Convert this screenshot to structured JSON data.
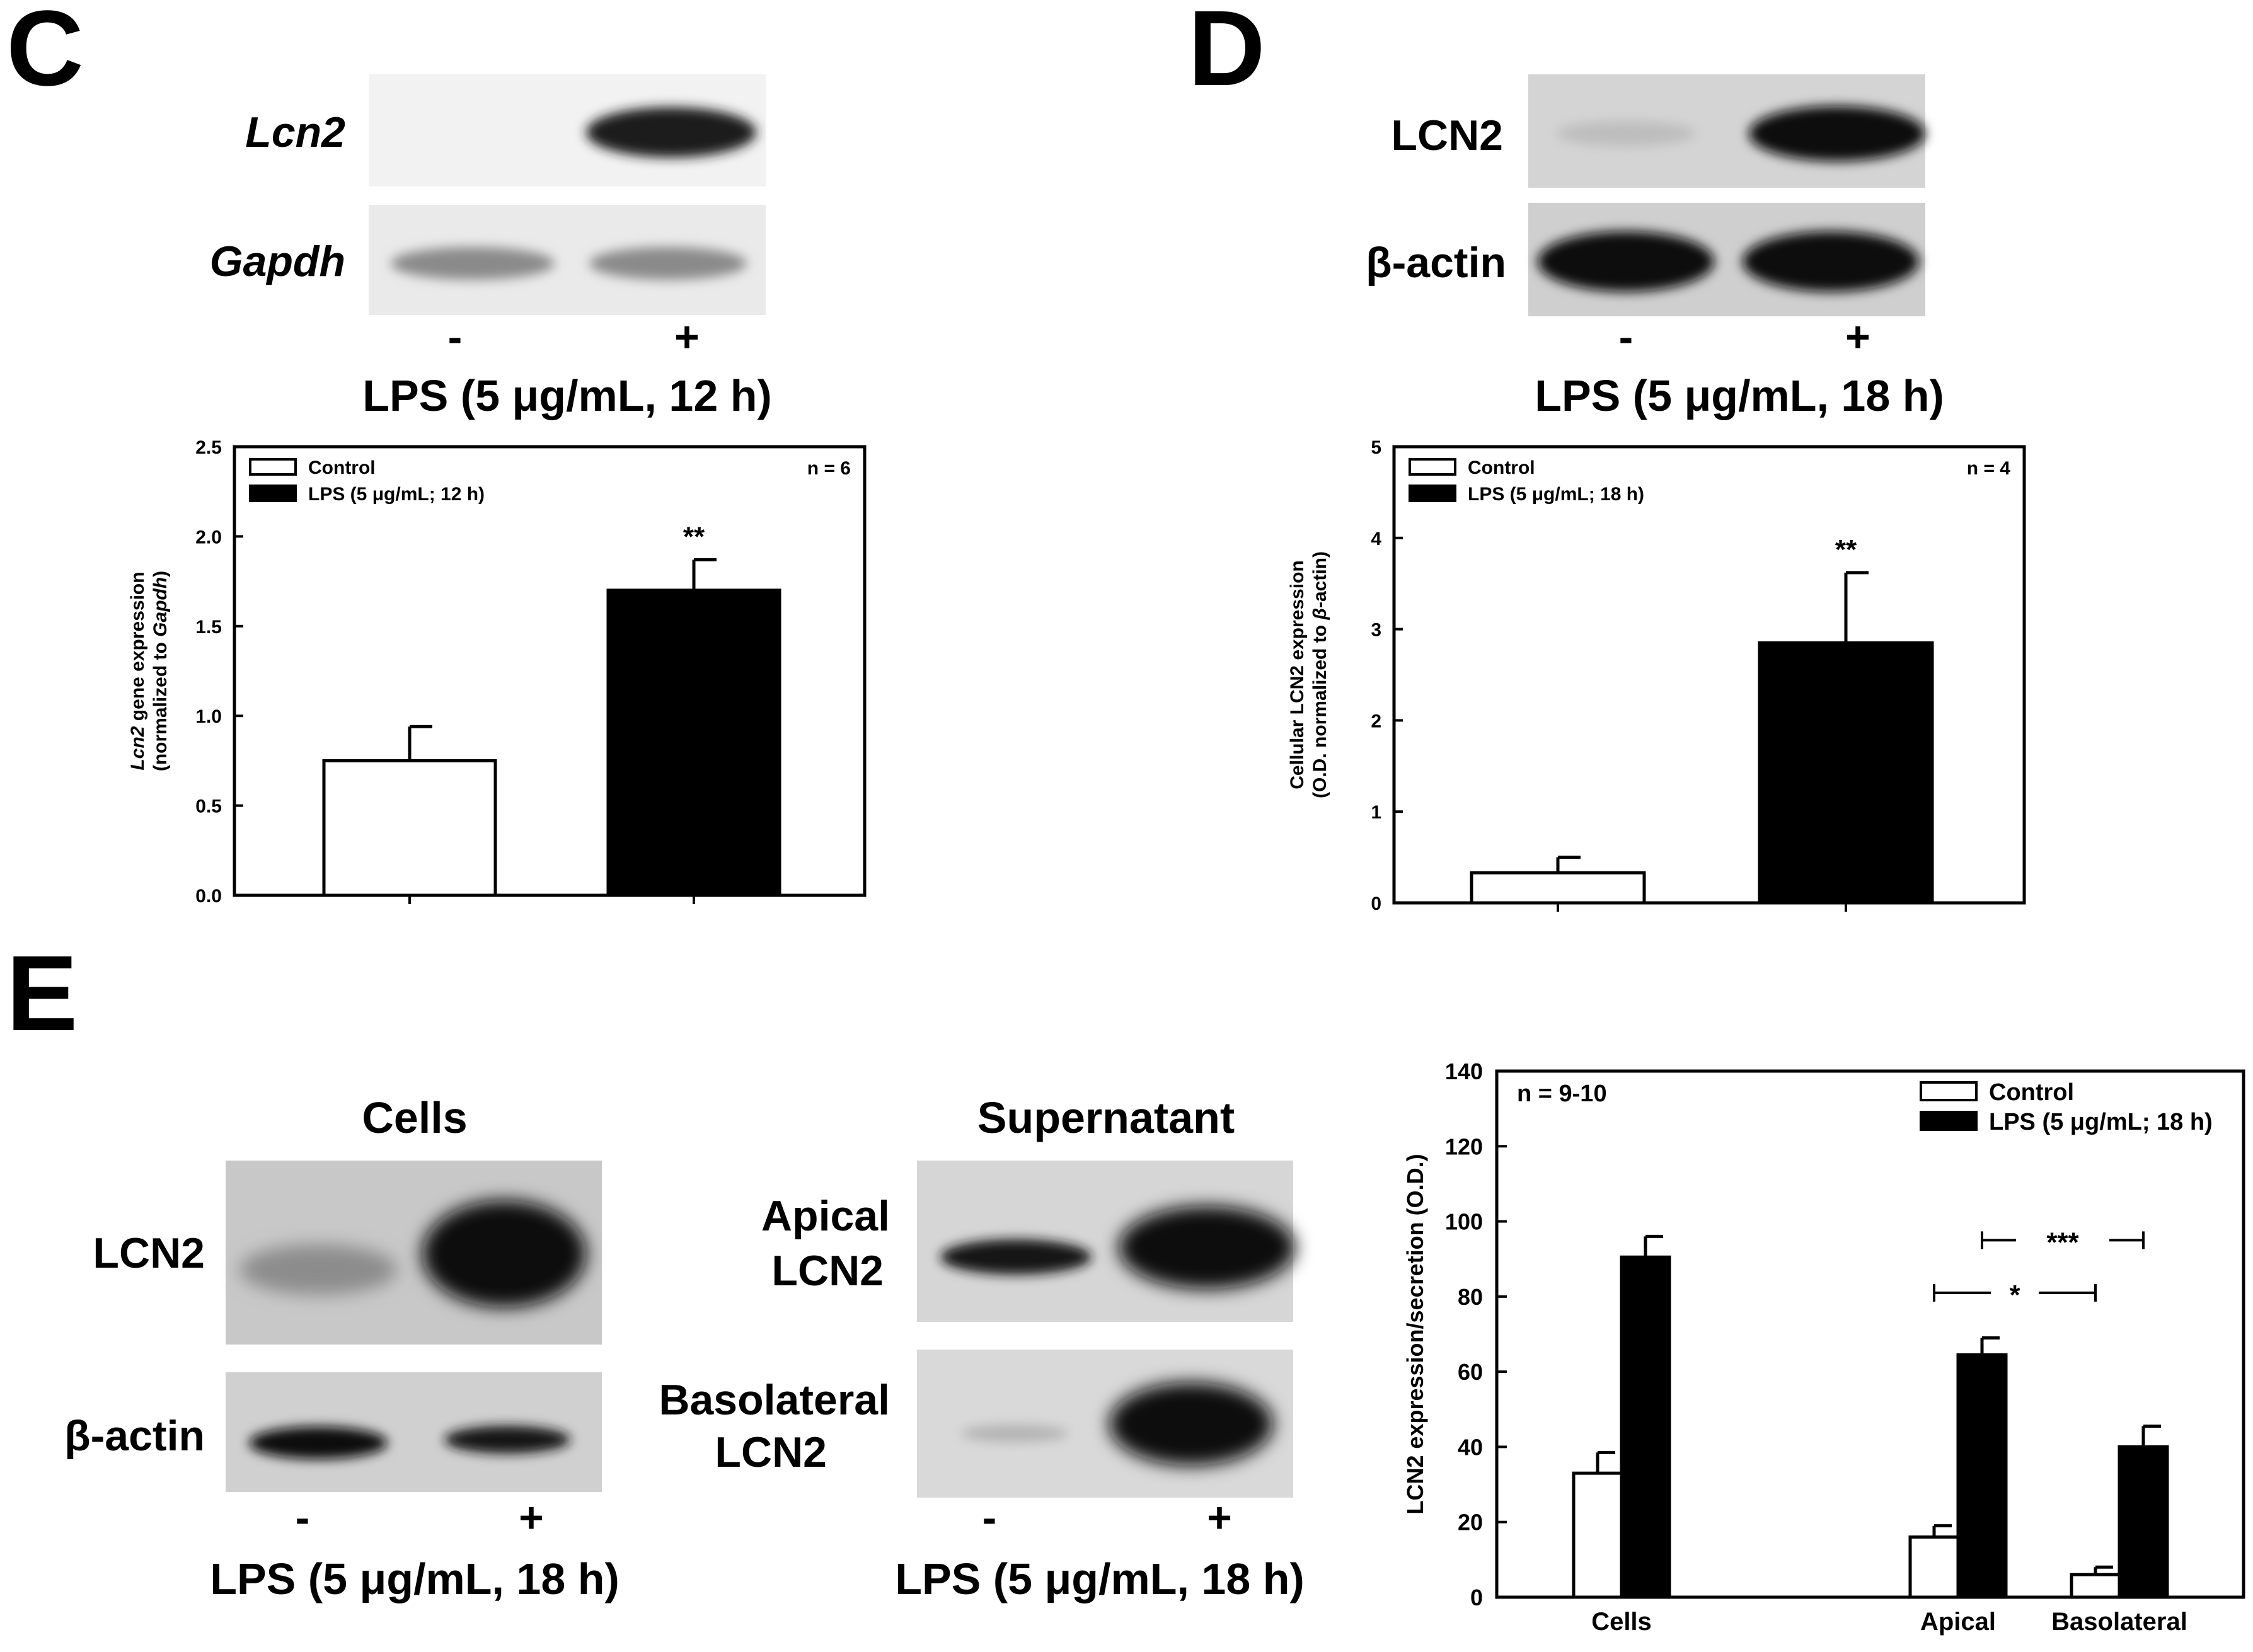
{
  "panels": {
    "C": "C",
    "D": "D",
    "E": "E"
  },
  "blots": {
    "C": {
      "rows": [
        "Lcn2",
        "Gapdh"
      ],
      "lanes": [
        "-",
        "+"
      ],
      "caption": "LPS (5 μg/mL, 12 h)"
    },
    "D": {
      "rows": [
        "LCN2",
        "β-actin"
      ],
      "lanes": [
        "-",
        "+"
      ],
      "caption": "LPS (5 μg/mL, 18 h)"
    },
    "E_cells": {
      "title": "Cells",
      "rows": [
        "LCN2",
        "β-actin"
      ],
      "lanes": [
        "-",
        "+"
      ],
      "caption": "LPS (5 μg/mL, 18 h)"
    },
    "E_sup": {
      "title": "Supernatant",
      "rows": [
        [
          "Apical",
          "LCN2"
        ],
        [
          "Basolateral",
          "LCN2"
        ]
      ],
      "lanes": [
        "-",
        "+"
      ],
      "caption": "LPS (5 μg/mL, 18 h)"
    }
  },
  "chart_data": [
    {
      "panel": "C",
      "type": "bar",
      "categories": [
        "Control",
        "LPS (5 μg/mL; 12 h)"
      ],
      "values": [
        0.75,
        1.7
      ],
      "errors": [
        0.19,
        0.17
      ],
      "colors": [
        "#ffffff",
        "#000000"
      ],
      "ylabel_lines": [
        [
          "Lcn2",
          " gene expression"
        ],
        [
          "(normalized to ",
          "Gapdh",
          ")"
        ]
      ],
      "ylim": [
        0,
        2.5
      ],
      "yticks": [
        "0.0",
        "0.5",
        "1.0",
        "1.5",
        "2.0",
        "2.5"
      ],
      "legend": [
        "Control",
        "LPS (5 μg/mL; 12 h)"
      ],
      "legend_position": "top-left",
      "n_label": "n = 6",
      "annotations": [
        "**"
      ]
    },
    {
      "panel": "D",
      "type": "bar",
      "categories": [
        "Control",
        "LPS (5 μg/mL; 18 h)"
      ],
      "values": [
        0.33,
        2.85
      ],
      "errors": [
        0.17,
        0.77
      ],
      "colors": [
        "#ffffff",
        "#000000"
      ],
      "ylabel_lines": [
        [
          "Cellular LCN2 expression"
        ],
        [
          "(O.D. normalized to ",
          "β",
          "-actin)"
        ]
      ],
      "ylim": [
        0,
        5
      ],
      "yticks": [
        "0",
        "1",
        "2",
        "3",
        "4",
        "5"
      ],
      "legend": [
        "Control",
        "LPS (5 μg/mL; 18 h)"
      ],
      "legend_position": "top-left",
      "n_label": "n = 4",
      "annotations": [
        "**"
      ]
    },
    {
      "panel": "E",
      "type": "bar",
      "categories": [
        "Cells",
        "Apical",
        "Basolateral"
      ],
      "series": [
        {
          "name": "Control",
          "values": [
            33,
            16,
            6
          ],
          "errors": [
            5.5,
            3,
            2
          ],
          "color": "#ffffff"
        },
        {
          "name": "LPS (5 μg/mL; 18 h)",
          "values": [
            90.5,
            64.5,
            40
          ],
          "errors": [
            5.5,
            4.5,
            5.5
          ],
          "color": "#000000"
        }
      ],
      "ylabel": "LCN2 expression/secretion (O.D.)",
      "ylim": [
        0,
        140
      ],
      "yticks": [
        "0",
        "20",
        "40",
        "60",
        "80",
        "100",
        "120",
        "140"
      ],
      "legend_position": "top-right",
      "n_label": "n = 9-10",
      "significance": [
        {
          "label": "*",
          "from": "Apical control",
          "to": "Basolateral control"
        },
        {
          "label": "***",
          "from": "Apical LPS",
          "to": "Basolateral LPS"
        }
      ]
    }
  ]
}
